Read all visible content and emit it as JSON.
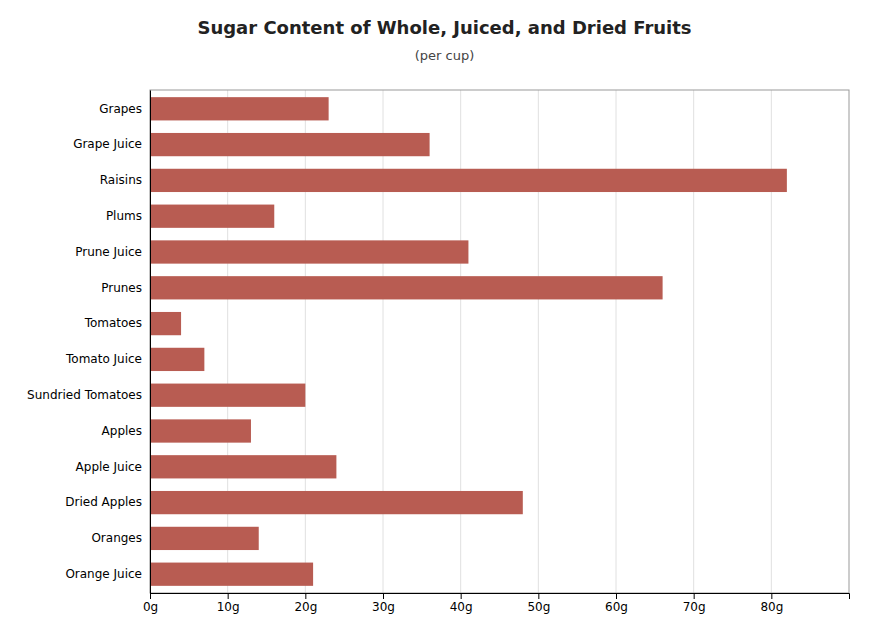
{
  "chart_data": {
    "type": "bar",
    "orientation": "horizontal",
    "title": "Sugar Content of Whole, Juiced, and Dried Fruits",
    "subtitle": "(per cup)",
    "categories": [
      "Grapes",
      "Grape Juice",
      "Raisins",
      "Plums",
      "Prune Juice",
      "Prunes",
      "Tomatoes",
      "Tomato Juice",
      "Sundried Tomatoes",
      "Apples",
      "Apple Juice",
      "Dried Apples",
      "Oranges",
      "Orange Juice"
    ],
    "values": [
      23,
      36,
      82,
      16,
      41,
      66,
      4,
      7,
      20,
      13,
      24,
      48,
      14,
      21
    ],
    "color": "#b85c52",
    "xlim": [
      0,
      90
    ],
    "xticks": [
      {
        "value": 0,
        "label": "0g"
      },
      {
        "value": 10,
        "label": "10g"
      },
      {
        "value": 20,
        "label": "20g"
      },
      {
        "value": 30,
        "label": "30g"
      },
      {
        "value": 40,
        "label": "40g"
      },
      {
        "value": 50,
        "label": "50g"
      },
      {
        "value": 60,
        "label": "60g"
      },
      {
        "value": 70,
        "label": "70g"
      },
      {
        "value": 80,
        "label": "80g"
      }
    ],
    "grid": true
  }
}
